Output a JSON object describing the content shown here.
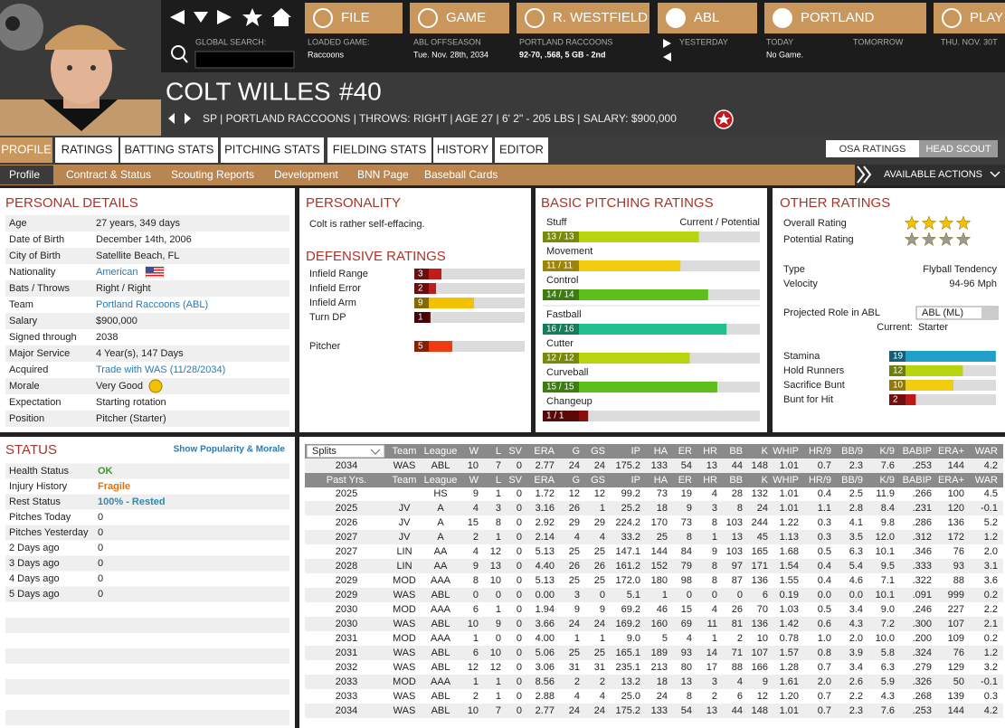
{
  "nav": {
    "buttons": [
      "FILE",
      "GAME",
      "R. WESTFIELD",
      "ABL",
      "PORTLAND",
      "PLAY"
    ]
  },
  "info": {
    "search_label": "GLOBAL SEARCH:",
    "loaded_game_label": "LOADED GAME:",
    "loaded_game": "Raccoons",
    "season_label": "ABL OFFSEASON",
    "date": "Tue. Nov. 28th, 2034",
    "team_label": "PORTLAND RACCOONS",
    "team_record": "92-70, .568, 5 GB - 2nd",
    "yesterday": "YESTERDAY",
    "today": "TODAY",
    "today_game": "No Game.",
    "tomorrow": "TOMORROW",
    "next_day": "THU. NOV. 30T"
  },
  "player": {
    "name": "COLT WILLES",
    "number": "#40",
    "details": "SP | PORTLAND RACCOONS | THROWS: RIGHT | AGE 27 | 6' 2\" - 205 LBS | SALARY: $900,000"
  },
  "tabs": [
    "PROFILE",
    "RATINGS",
    "BATTING STATS",
    "PITCHING STATS",
    "FIELDING STATS",
    "HISTORY",
    "EDITOR"
  ],
  "rating_tabs": [
    "OSA RATINGS",
    "HEAD SCOUT"
  ],
  "subtabs": [
    "Profile",
    "Contract & Status",
    "Scouting Reports",
    "Development",
    "BNN Page",
    "Baseball Cards"
  ],
  "actions": "AVAILABLE ACTIONS",
  "personal_details": {
    "title": "PERSONAL DETAILS",
    "rows": [
      {
        "label": "Age",
        "value": "27 years, 349 days"
      },
      {
        "label": "Date of Birth",
        "value": "December 14th, 2006"
      },
      {
        "label": "City of Birth",
        "value": "Satellite Beach, FL"
      },
      {
        "label": "Nationality",
        "value": "American",
        "link": true
      },
      {
        "label": "Bats / Throws",
        "value": "Right / Right"
      },
      {
        "label": "Team",
        "value": "Portland Raccoons (ABL)",
        "link": true
      },
      {
        "label": "Salary",
        "value": "$900,000"
      },
      {
        "label": "Signed through",
        "value": "2038"
      },
      {
        "label": "Major Service",
        "value": "4 Year(s), 147 Days"
      },
      {
        "label": "Acquired",
        "value": "Trade with WAS (11/28/2034)",
        "link": true
      },
      {
        "label": "Morale",
        "value": "Very Good"
      },
      {
        "label": "Expectation",
        "value": "Starting rotation"
      },
      {
        "label": "Position",
        "value": "Pitcher (Starter)"
      }
    ]
  },
  "personality": {
    "title": "PERSONALITY",
    "text": "Colt is rather self-effacing."
  },
  "defensive_ratings": {
    "title": "DEFENSIVE RATINGS",
    "items": [
      {
        "name": "Infield Range",
        "value": 3,
        "color": "#c01c1c"
      },
      {
        "name": "Infield Error",
        "value": 2,
        "color": "#c01c1c"
      },
      {
        "name": "Infield Arm",
        "value": 9,
        "color": "#f2c200"
      },
      {
        "name": "Turn DP",
        "value": 1,
        "color": "#7a0a0a"
      },
      {
        "name": "Pitcher",
        "value": 5,
        "color": "#f03a10"
      }
    ]
  },
  "pitching_ratings": {
    "title": "BASIC PITCHING RATINGS",
    "column_label": "Current / Potential",
    "items": [
      {
        "name": "Stuff",
        "label": "13 / 13",
        "value": 13,
        "color": "#b8d40c"
      },
      {
        "name": "Movement",
        "label": "11 / 11",
        "value": 11,
        "color": "#f2cc10"
      },
      {
        "name": "Control",
        "label": "14 / 14",
        "value": 14,
        "color": "#5cbf1a"
      },
      {
        "name": "Fastball",
        "label": "16 / 16",
        "value": 16,
        "color": "#22c08e"
      },
      {
        "name": "Cutter",
        "label": "12 / 12",
        "value": 12,
        "color": "#b8d40c"
      },
      {
        "name": "Curveball",
        "label": "15 / 15",
        "value": 15,
        "color": "#5cbf1a"
      },
      {
        "name": "Changeup",
        "label": "1 / 1",
        "value": 1,
        "color": "#8a0e0e"
      }
    ]
  },
  "other_ratings": {
    "title": "OTHER RATINGS",
    "overall_label": "Overall Rating",
    "overall_stars": 4,
    "potential_label": "Potential Rating",
    "potential_stars": 4,
    "type_label": "Type",
    "type": "Flyball Tendency",
    "velocity_label": "Velocity",
    "velocity": "94-96 Mph",
    "role_label": "Projected Role in ABL",
    "role_select": "ABL (ML)",
    "current_label": "Current:",
    "current_role": "Starter",
    "items": [
      {
        "name": "Stamina",
        "value": 19,
        "color": "#1ea0c8"
      },
      {
        "name": "Hold Runners",
        "value": 12,
        "color": "#b8d40c"
      },
      {
        "name": "Sacrifice Bunt",
        "value": 10,
        "color": "#f2cc10"
      },
      {
        "name": "Bunt for Hit",
        "value": 2,
        "color": "#c01818"
      }
    ]
  },
  "status": {
    "title": "STATUS",
    "link": "Show Popularity & Morale",
    "rows": [
      {
        "label": "Health Status",
        "value": "OK",
        "color": "#3a9a2a"
      },
      {
        "label": "Injury History",
        "value": "Fragile",
        "color": "#e07010"
      },
      {
        "label": "Rest Status",
        "value": "100% - Rested",
        "color": "#2a8ab0"
      },
      {
        "label": "Pitches Today",
        "value": "0"
      },
      {
        "label": "Pitches Yesterday",
        "value": "0"
      },
      {
        "label": "2 Days ago",
        "value": "0"
      },
      {
        "label": "3 Days ago",
        "value": "0"
      },
      {
        "label": "4 Days ago",
        "value": "0"
      },
      {
        "label": "5 Days ago",
        "value": "0"
      }
    ]
  },
  "stats": {
    "splits": "Splits",
    "past_label": "Past Yrs.",
    "columns": [
      "Team",
      "League",
      "W",
      "L",
      "SV",
      "ERA",
      "G",
      "GS",
      "IP",
      "HA",
      "ER",
      "HR",
      "BB",
      "K",
      "WHIP",
      "HR/9",
      "BB/9",
      "K/9",
      "BABIP",
      "ERA+",
      "WAR"
    ],
    "current": [
      "2034",
      "WAS",
      "ABL",
      "10",
      "7",
      "0",
      "2.77",
      "24",
      "24",
      "175.2",
      "133",
      "54",
      "13",
      "44",
      "148",
      "1.01",
      "0.7",
      "2.3",
      "7.6",
      ".253",
      "144",
      "4.2"
    ],
    "rows": [
      [
        "2025",
        null,
        "HS",
        "9",
        "1",
        "0",
        "1.72",
        "12",
        "12",
        "99.2",
        "73",
        "19",
        "4",
        "28",
        "132",
        "1.01",
        "0.4",
        "2.5",
        "11.9",
        ".266",
        "100",
        "4.5"
      ],
      [
        "2025",
        "JV",
        "A",
        "4",
        "3",
        "0",
        "3.16",
        "26",
        "1",
        "25.2",
        "18",
        "9",
        "3",
        "8",
        "24",
        "1.01",
        "1.1",
        "2.8",
        "8.4",
        ".231",
        "120",
        "-0.1"
      ],
      [
        "2026",
        "JV",
        "A",
        "15",
        "8",
        "0",
        "2.92",
        "29",
        "29",
        "224.2",
        "170",
        "73",
        "8",
        "103",
        "244",
        "1.22",
        "0.3",
        "4.1",
        "9.8",
        ".286",
        "136",
        "5.2"
      ],
      [
        "2027",
        "JV",
        "A",
        "2",
        "1",
        "0",
        "2.14",
        "4",
        "4",
        "33.2",
        "25",
        "8",
        "1",
        "13",
        "45",
        "1.13",
        "0.3",
        "3.5",
        "12.0",
        ".312",
        "172",
        "1.2"
      ],
      [
        "2027",
        "LIN",
        "AA",
        "4",
        "12",
        "0",
        "5.13",
        "25",
        "25",
        "147.1",
        "144",
        "84",
        "9",
        "103",
        "165",
        "1.68",
        "0.5",
        "6.3",
        "10.1",
        ".346",
        "76",
        "2.0"
      ],
      [
        "2028",
        "LIN",
        "AA",
        "9",
        "13",
        "0",
        "4.40",
        "26",
        "26",
        "161.2",
        "152",
        "79",
        "8",
        "97",
        "171",
        "1.54",
        "0.4",
        "5.4",
        "9.5",
        ".333",
        "93",
        "3.1"
      ],
      [
        "2029",
        "MOD",
        "AAA",
        "8",
        "10",
        "0",
        "5.13",
        "25",
        "25",
        "172.0",
        "180",
        "98",
        "8",
        "87",
        "136",
        "1.55",
        "0.4",
        "4.6",
        "7.1",
        ".322",
        "88",
        "3.6"
      ],
      [
        "2029",
        "WAS",
        "ABL",
        "0",
        "0",
        "0",
        "0.00",
        "3",
        "0",
        "5.1",
        "1",
        "0",
        "0",
        "0",
        "6",
        "0.19",
        "0.0",
        "0.0",
        "10.1",
        ".091",
        "999",
        "0.2"
      ],
      [
        "2030",
        "MOD",
        "AAA",
        "6",
        "1",
        "0",
        "1.94",
        "9",
        "9",
        "69.2",
        "46",
        "15",
        "4",
        "26",
        "70",
        "1.03",
        "0.5",
        "3.4",
        "9.0",
        ".246",
        "227",
        "2.2"
      ],
      [
        "2030",
        "WAS",
        "ABL",
        "10",
        "9",
        "0",
        "3.66",
        "24",
        "24",
        "169.2",
        "160",
        "69",
        "11",
        "81",
        "136",
        "1.42",
        "0.6",
        "4.3",
        "7.2",
        ".300",
        "107",
        "2.1"
      ],
      [
        "2031",
        "MOD",
        "AAA",
        "1",
        "0",
        "0",
        "4.00",
        "1",
        "1",
        "9.0",
        "5",
        "4",
        "1",
        "2",
        "10",
        "0.78",
        "1.0",
        "2.0",
        "10.0",
        ".200",
        "109",
        "0.2"
      ],
      [
        "2031",
        "WAS",
        "ABL",
        "6",
        "10",
        "0",
        "5.06",
        "25",
        "25",
        "165.1",
        "189",
        "93",
        "14",
        "71",
        "107",
        "1.57",
        "0.8",
        "3.9",
        "5.8",
        ".324",
        "76",
        "1.2"
      ],
      [
        "2032",
        "WAS",
        "ABL",
        "12",
        "12",
        "0",
        "3.06",
        "31",
        "31",
        "235.1",
        "213",
        "80",
        "17",
        "88",
        "166",
        "1.28",
        "0.7",
        "3.4",
        "6.3",
        ".279",
        "129",
        "3.2"
      ],
      [
        "2033",
        "MOD",
        "AAA",
        "1",
        "1",
        "0",
        "8.56",
        "2",
        "2",
        "13.2",
        "18",
        "13",
        "3",
        "4",
        "9",
        "1.61",
        "2.0",
        "2.6",
        "5.9",
        ".326",
        "50",
        "-0.1"
      ],
      [
        "2033",
        "WAS",
        "ABL",
        "2",
        "1",
        "0",
        "2.88",
        "4",
        "4",
        "25.0",
        "24",
        "8",
        "2",
        "6",
        "12",
        "1.20",
        "0.7",
        "2.2",
        "4.3",
        ".268",
        "139",
        "0.3"
      ],
      [
        "2034",
        "WAS",
        "ABL",
        "10",
        "7",
        "0",
        "2.77",
        "24",
        "24",
        "175.2",
        "133",
        "54",
        "13",
        "44",
        "148",
        "1.01",
        "0.7",
        "2.3",
        "7.6",
        ".253",
        "144",
        "4.2"
      ]
    ]
  }
}
